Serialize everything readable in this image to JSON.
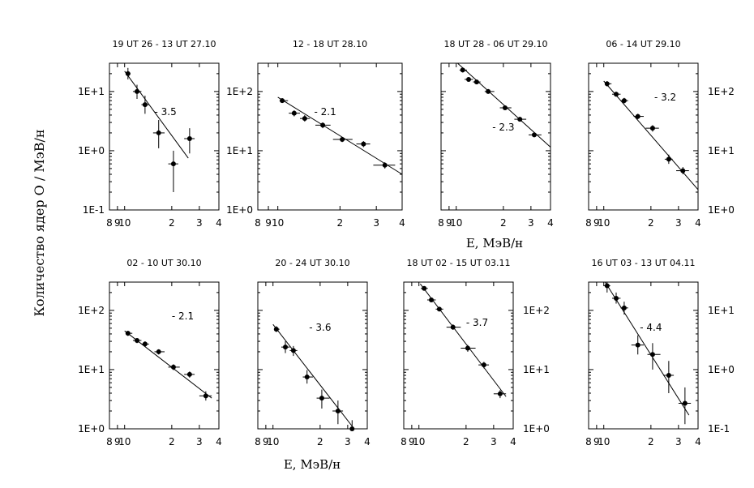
{
  "figure": {
    "ylabel": "Количество ядер О / МэВ/н",
    "xlabel": "E,  МэВ/н"
  },
  "chart_data": [
    {
      "type": "scatter",
      "title": "19 UT 26 - 13 UT 27.10",
      "xscale": "log",
      "yscale": "log",
      "xlim": [
        8,
        40
      ],
      "ylim": [
        0.1,
        30
      ],
      "y_tick_labels": [
        "1E+1",
        "1E+0",
        "1E-1"
      ],
      "y_tick_values": [
        10,
        1,
        0.1
      ],
      "y_axis_side": "left",
      "x_tick_labels": [
        "8",
        "9",
        "10",
        "2",
        "3",
        "4"
      ],
      "slope_label": "- 3.5",
      "slope_label_pos": [
        15.5,
        4.0
      ],
      "points": [
        {
          "x": 10.5,
          "y": 20,
          "xerr": [
            10.2,
            10.9
          ],
          "yerr": [
            16,
            25
          ]
        },
        {
          "x": 12,
          "y": 10,
          "xerr": [
            11.3,
            12.8
          ],
          "yerr": [
            7.5,
            13
          ]
        },
        {
          "x": 13.5,
          "y": 6,
          "xerr": [
            12.8,
            14.3
          ],
          "yerr": [
            4.2,
            8.5
          ]
        },
        {
          "x": 16.5,
          "y": 2,
          "xerr": [
            15.2,
            18
          ],
          "yerr": [
            1.1,
            3.3
          ]
        },
        {
          "x": 20.5,
          "y": 0.6,
          "xerr": [
            19,
            22
          ],
          "yerr": [
            0.2,
            1.0
          ]
        },
        {
          "x": 26,
          "y": 1.6,
          "xerr": [
            24,
            28
          ],
          "yerr": [
            0.9,
            2.4
          ]
        }
      ],
      "fit": {
        "x": [
          10,
          25.5
        ],
        "y": [
          22,
          0.75
        ]
      }
    },
    {
      "type": "scatter",
      "title": "12 - 18 UT 28.10",
      "xscale": "log",
      "yscale": "log",
      "xlim": [
        8,
        40
      ],
      "ylim": [
        1,
        300
      ],
      "y_tick_labels": [
        "1E+2",
        "1E+1",
        "1E+0"
      ],
      "y_tick_values": [
        100,
        10,
        1
      ],
      "y_axis_side": "left",
      "x_tick_labels": [
        "8",
        "9",
        "10",
        "2",
        "3",
        "4"
      ],
      "slope_label": "- 2.1",
      "slope_label_pos": [
        15,
        40
      ],
      "points": [
        {
          "x": 10.5,
          "y": 70,
          "xerr": [
            10.2,
            11.2
          ],
          "yerr": [
            64,
            77
          ]
        },
        {
          "x": 12,
          "y": 43,
          "xerr": [
            11.3,
            12.8
          ],
          "yerr": [
            38,
            48
          ]
        },
        {
          "x": 13.5,
          "y": 35,
          "xerr": [
            12.8,
            14.3
          ],
          "yerr": [
            31,
            40
          ]
        },
        {
          "x": 16.5,
          "y": 27,
          "xerr": [
            15.2,
            18
          ],
          "yerr": [
            24,
            30
          ]
        },
        {
          "x": 20.5,
          "y": 15.5,
          "xerr": [
            18.5,
            23
          ],
          "yerr": [
            14,
            17
          ]
        },
        {
          "x": 26,
          "y": 13,
          "xerr": [
            24,
            28
          ],
          "yerr": [
            11.5,
            14.5
          ]
        },
        {
          "x": 33,
          "y": 5.7,
          "xerr": [
            29,
            37
          ],
          "yerr": [
            5,
            6.4
          ]
        }
      ],
      "fit": {
        "x": [
          10,
          40
        ],
        "y": [
          80,
          4.0
        ]
      }
    },
    {
      "type": "scatter",
      "title": "18 UT 28 - 06 UT 29.10",
      "xscale": "log",
      "yscale": "log",
      "xlim": [
        8,
        40
      ],
      "ylim": [
        1,
        300
      ],
      "y_tick_labels": [],
      "y_tick_values": [
        100,
        10,
        1
      ],
      "y_axis_side": "left",
      "x_tick_labels": [
        "8",
        "9",
        "10",
        "2",
        "3",
        "4"
      ],
      "slope_label": "- 2.3",
      "slope_label_pos": [
        17,
        22
      ],
      "points": [
        {
          "x": 11,
          "y": 230,
          "xerr": [
            10.5,
            11.7
          ],
          "yerr": [
            210,
            250
          ]
        },
        {
          "x": 12,
          "y": 160,
          "xerr": [
            11.3,
            12.8
          ],
          "yerr": [
            148,
            175
          ]
        },
        {
          "x": 13.5,
          "y": 145,
          "xerr": [
            12.8,
            14.3
          ],
          "yerr": [
            134,
            158
          ]
        },
        {
          "x": 16,
          "y": 100,
          "xerr": [
            15.2,
            17.5
          ],
          "yerr": [
            92,
            110
          ]
        },
        {
          "x": 20.5,
          "y": 53,
          "xerr": [
            19,
            22.5
          ],
          "yerr": [
            49,
            57
          ]
        },
        {
          "x": 25.5,
          "y": 34,
          "xerr": [
            23.5,
            28
          ],
          "yerr": [
            31,
            37
          ]
        },
        {
          "x": 31.5,
          "y": 18.5,
          "xerr": [
            29,
            35
          ],
          "yerr": [
            17,
            20.5
          ]
        }
      ],
      "fit": {
        "x": [
          10.2,
          40
        ],
        "y": [
          300,
          11.5
        ]
      }
    },
    {
      "type": "scatter",
      "title": "06 - 14 UT 29.10",
      "xscale": "log",
      "yscale": "log",
      "xlim": [
        8,
        40
      ],
      "ylim": [
        1,
        300
      ],
      "y_tick_labels": [
        "1E+2",
        "1E+1",
        "1E+0"
      ],
      "y_tick_values": [
        100,
        10,
        1
      ],
      "y_axis_side": "right",
      "x_tick_labels": [
        "8",
        "9",
        "10",
        "2",
        "3",
        "4"
      ],
      "slope_label": "- 3.2",
      "slope_label_pos": [
        21,
        70
      ],
      "points": [
        {
          "x": 10.5,
          "y": 135,
          "xerr": [
            10.2,
            11.2
          ],
          "yerr": [
            122,
            150
          ]
        },
        {
          "x": 12,
          "y": 90,
          "xerr": [
            11.3,
            12.8
          ],
          "yerr": [
            82,
            99
          ]
        },
        {
          "x": 13.5,
          "y": 70,
          "xerr": [
            12.8,
            14.3
          ],
          "yerr": [
            63,
            78
          ]
        },
        {
          "x": 16.5,
          "y": 38,
          "xerr": [
            15.5,
            18
          ],
          "yerr": [
            34,
            42
          ]
        },
        {
          "x": 20.5,
          "y": 24,
          "xerr": [
            18.5,
            22.5
          ],
          "yerr": [
            21,
            27
          ]
        },
        {
          "x": 26,
          "y": 7.2,
          "xerr": [
            24.5,
            27.5
          ],
          "yerr": [
            6.0,
            8.6
          ]
        },
        {
          "x": 32,
          "y": 4.6,
          "xerr": [
            29,
            35
          ],
          "yerr": [
            4.0,
            5.3
          ]
        }
      ],
      "fit": {
        "x": [
          10,
          40
        ],
        "y": [
          150,
          2.2
        ]
      }
    },
    {
      "type": "scatter",
      "title": "02 - 10 UT 30.10",
      "xscale": "log",
      "yscale": "log",
      "xlim": [
        8,
        40
      ],
      "ylim": [
        1,
        300
      ],
      "y_tick_labels": [
        "1E+2",
        "1E+1",
        "1E+0"
      ],
      "y_tick_values": [
        100,
        10,
        1
      ],
      "y_axis_side": "left",
      "x_tick_labels": [
        "8",
        "9",
        "10",
        "2",
        "3",
        "4"
      ],
      "slope_label": "- 2.1",
      "slope_label_pos": [
        20,
        70
      ],
      "points": [
        {
          "x": 10.5,
          "y": 41,
          "xerr": [
            10.2,
            11.2
          ],
          "yerr": [
            37,
            45
          ]
        },
        {
          "x": 12,
          "y": 31,
          "xerr": [
            11.3,
            12.8
          ],
          "yerr": [
            28,
            34
          ]
        },
        {
          "x": 13.5,
          "y": 27,
          "xerr": [
            12.8,
            14.3
          ],
          "yerr": [
            24.5,
            30
          ]
        },
        {
          "x": 16.5,
          "y": 20,
          "xerr": [
            15.5,
            18
          ],
          "yerr": [
            18,
            22
          ]
        },
        {
          "x": 20.5,
          "y": 11,
          "xerr": [
            19,
            22.5
          ],
          "yerr": [
            9.8,
            12.3
          ]
        },
        {
          "x": 26,
          "y": 8.3,
          "xerr": [
            24,
            28
          ],
          "yerr": [
            7.3,
            9.3
          ]
        },
        {
          "x": 33,
          "y": 3.6,
          "xerr": [
            30,
            36
          ],
          "yerr": [
            3.0,
            4.3
          ]
        }
      ],
      "fit": {
        "x": [
          10,
          36
        ],
        "y": [
          45,
          3.3
        ]
      }
    },
    {
      "type": "scatter",
      "title": "20 - 24 UT 30.10",
      "xscale": "log",
      "yscale": "log",
      "xlim": [
        8,
        40
      ],
      "ylim": [
        1,
        300
      ],
      "y_tick_labels": [],
      "y_tick_values": [
        100,
        10,
        1
      ],
      "y_axis_side": "left",
      "x_tick_labels": [
        "8",
        "9",
        "10",
        "2",
        "3",
        "4"
      ],
      "slope_label": "- 3.6",
      "slope_label_pos": [
        17,
        45
      ],
      "points": [
        {
          "x": 10.5,
          "y": 48,
          "xerr": [
            10.2,
            11
          ],
          "yerr": [
            43,
            54
          ]
        },
        {
          "x": 12,
          "y": 24,
          "xerr": [
            11.3,
            12.8
          ],
          "yerr": [
            19,
            30
          ]
        },
        {
          "x": 13.5,
          "y": 21,
          "xerr": [
            12.8,
            14.3
          ],
          "yerr": [
            17,
            25
          ]
        },
        {
          "x": 16.5,
          "y": 7.5,
          "xerr": [
            15.5,
            18
          ],
          "yerr": [
            5.8,
            9.8
          ]
        },
        {
          "x": 20.5,
          "y": 3.3,
          "xerr": [
            19,
            23
          ],
          "yerr": [
            2.2,
            4.6
          ]
        },
        {
          "x": 26,
          "y": 2.0,
          "xerr": [
            24,
            28
          ],
          "yerr": [
            1.2,
            3.0
          ]
        },
        {
          "x": 32,
          "y": 1.0,
          "xerr": [
            29,
            35
          ],
          "yerr": [
            0.7,
            1.4
          ]
        }
      ],
      "fit": {
        "x": [
          10,
          33
        ],
        "y": [
          58,
          1.0
        ]
      }
    },
    {
      "type": "scatter",
      "title": "18 UT 02 - 15 UT 03.11",
      "xscale": "log",
      "yscale": "log",
      "xlim": [
        8,
        40
      ],
      "ylim": [
        1,
        300
      ],
      "y_tick_labels": [
        "1E+2",
        "1E+1",
        "1E+0"
      ],
      "y_tick_values": [
        100,
        10,
        1
      ],
      "y_axis_side": "right",
      "x_tick_labels": [
        "8",
        "9",
        "10",
        "2",
        "3",
        "4"
      ],
      "slope_label": "- 3.7",
      "slope_label_pos": [
        20,
        55
      ],
      "points": [
        {
          "x": 10.8,
          "y": 235,
          "xerr": [
            10.3,
            11.4
          ],
          "yerr": [
            222,
            250
          ]
        },
        {
          "x": 12,
          "y": 150,
          "xerr": [
            11.3,
            12.8
          ],
          "yerr": [
            140,
            162
          ]
        },
        {
          "x": 13.5,
          "y": 105,
          "xerr": [
            12.8,
            14.3
          ],
          "yerr": [
            97,
            114
          ]
        },
        {
          "x": 16.5,
          "y": 52,
          "xerr": [
            15,
            18.5
          ],
          "yerr": [
            47,
            58
          ]
        },
        {
          "x": 20.5,
          "y": 23,
          "xerr": [
            18.5,
            23
          ],
          "yerr": [
            20,
            26
          ]
        },
        {
          "x": 26,
          "y": 12,
          "xerr": [
            24,
            28
          ],
          "yerr": [
            10.5,
            13.5
          ]
        },
        {
          "x": 33,
          "y": 3.9,
          "xerr": [
            30,
            36
          ],
          "yerr": [
            3.3,
            4.5
          ]
        }
      ],
      "fit": {
        "x": [
          10.2,
          36
        ],
        "y": [
          280,
          3.5
        ]
      }
    },
    {
      "type": "scatter",
      "title": "16 UT 03 - 13 UT 04.11",
      "xscale": "log",
      "yscale": "log",
      "xlim": [
        8,
        40
      ],
      "ylim": [
        0.1,
        30
      ],
      "y_tick_labels": [
        "1E+1",
        "1E+0",
        "1E-1"
      ],
      "y_tick_values": [
        10,
        1,
        0.1
      ],
      "y_axis_side": "right",
      "x_tick_labels": [
        "8",
        "9",
        "10",
        "2",
        "3",
        "4"
      ],
      "slope_label": "- 4.4",
      "slope_label_pos": [
        17,
        4.5
      ],
      "points": [
        {
          "x": 10.5,
          "y": 26,
          "xerr": [
            10,
            11
          ],
          "yerr": [
            20,
            33
          ]
        },
        {
          "x": 12,
          "y": 16,
          "xerr": [
            11.3,
            12.8
          ],
          "yerr": [
            13,
            20
          ]
        },
        {
          "x": 13.5,
          "y": 11,
          "xerr": [
            12.8,
            14.3
          ],
          "yerr": [
            8.5,
            14
          ]
        },
        {
          "x": 16.5,
          "y": 2.6,
          "xerr": [
            15,
            18
          ],
          "yerr": [
            1.8,
            3.8
          ]
        },
        {
          "x": 20.5,
          "y": 1.8,
          "xerr": [
            19,
            23
          ],
          "yerr": [
            1.0,
            2.8
          ]
        },
        {
          "x": 26,
          "y": 0.8,
          "xerr": [
            24,
            28
          ],
          "yerr": [
            0.4,
            1.4
          ]
        },
        {
          "x": 33,
          "y": 0.27,
          "xerr": [
            30,
            36
          ],
          "yerr": [
            0.12,
            0.5
          ]
        }
      ],
      "fit": {
        "x": [
          10.2,
          35
        ],
        "y": [
          32,
          0.17
        ]
      }
    }
  ]
}
